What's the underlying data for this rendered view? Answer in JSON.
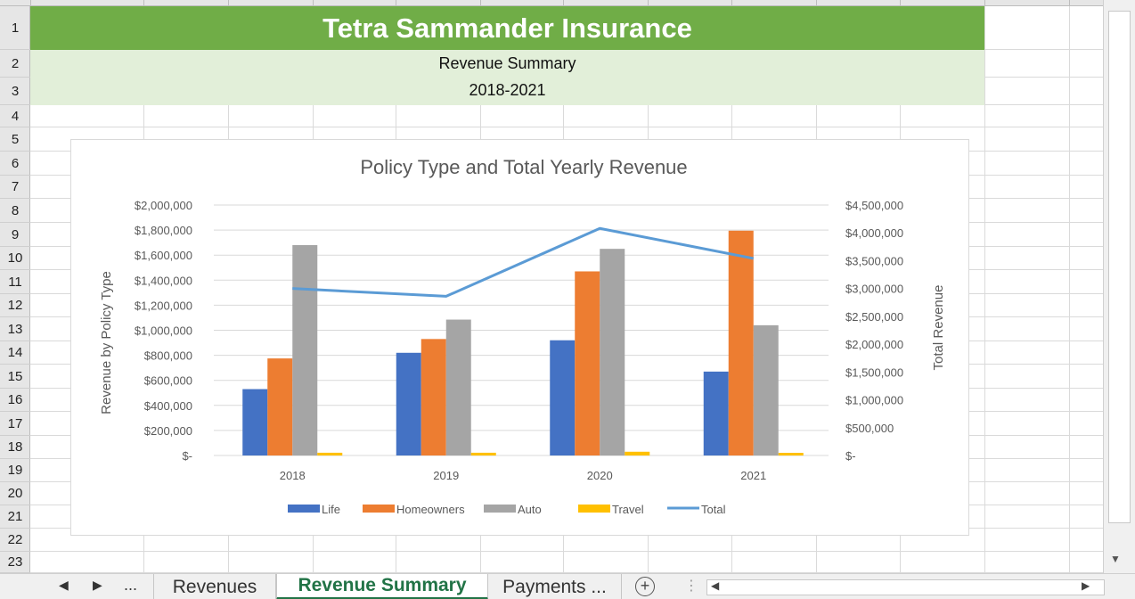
{
  "sheet": {
    "rows": [
      "1",
      "2",
      "3",
      "4",
      "5",
      "6",
      "7",
      "8",
      "9",
      "10",
      "11",
      "12",
      "13",
      "14",
      "15",
      "16",
      "17",
      "18",
      "19",
      "20",
      "21",
      "22",
      "23"
    ],
    "title": "Tetra Sammander Insurance",
    "subtitle": "Revenue Summary",
    "years_range": "2018-2021"
  },
  "tabs": {
    "nav_prev": "◀",
    "nav_next": "▶",
    "ellipsis": "...",
    "items": [
      {
        "label": "Revenues",
        "active": false
      },
      {
        "label": "Revenue Summary",
        "active": true
      },
      {
        "label": "Payments ...",
        "active": false
      }
    ],
    "add_label": "+",
    "split_handle": "⋮",
    "hscroll_left": "◀",
    "hscroll_right": "▶"
  },
  "scroll": {
    "down_arrow": "▼"
  },
  "colors": {
    "life": "#4472c4",
    "homeowners": "#ed7d31",
    "auto": "#a5a5a5",
    "travel": "#ffc000",
    "total": "#5b9bd5",
    "title_band": "#70ad47",
    "subtitle_band": "#e2efd9",
    "active_tab": "#217346"
  },
  "chart_data": {
    "type": "bar",
    "title": "Policy Type and Total Yearly Revenue",
    "categories": [
      "2018",
      "2019",
      "2020",
      "2021"
    ],
    "ylabel": "Revenue by Policy Type",
    "y2label": "Total Revenue",
    "ylim": [
      0,
      2000000
    ],
    "y2lim": [
      0,
      4500000
    ],
    "yticks": [
      "$-",
      "$200,000",
      "$400,000",
      "$600,000",
      "$800,000",
      "$1,000,000",
      "$1,200,000",
      "$1,400,000",
      "$1,600,000",
      "$1,800,000",
      "$2,000,000"
    ],
    "y2ticks": [
      "$-",
      "$500,000",
      "$1,000,000",
      "$1,500,000",
      "$2,000,000",
      "$2,500,000",
      "$3,000,000",
      "$3,500,000",
      "$4,000,000",
      "$4,500,000"
    ],
    "series": [
      {
        "name": "Life",
        "values": [
          530000,
          820000,
          920000,
          670000
        ],
        "color": "#4472c4"
      },
      {
        "name": "Homeowners",
        "values": [
          775000,
          930000,
          1470000,
          1795000
        ],
        "color": "#ed7d31"
      },
      {
        "name": "Auto",
        "values": [
          1680000,
          1085000,
          1650000,
          1040000
        ],
        "color": "#a5a5a5"
      },
      {
        "name": "Travel",
        "values": [
          22000,
          22000,
          30000,
          20000
        ],
        "color": "#ffc000"
      }
    ],
    "line_series": {
      "name": "Total",
      "values": [
        3000000,
        2860000,
        4080000,
        3540000
      ],
      "color": "#5b9bd5",
      "axis": "secondary"
    },
    "legend": [
      "Life",
      "Homeowners",
      "Auto",
      "Travel",
      "Total"
    ],
    "legend_position": "bottom",
    "grid": true
  }
}
